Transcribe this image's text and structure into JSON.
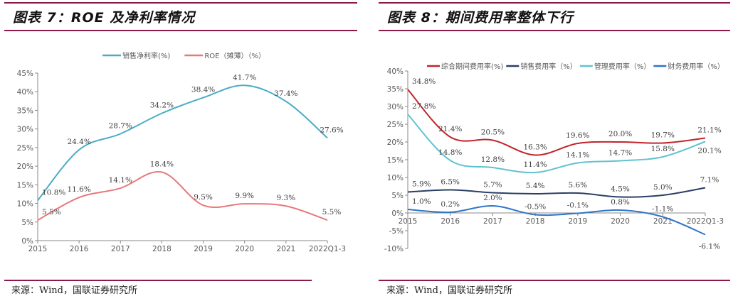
{
  "left": {
    "title": "图表 7：ROE 及净利率情况",
    "source": "来源：Wind，国联证券研究所"
  },
  "right": {
    "title": "图表 8：期间费用率整体下行",
    "source": "来源：Wind，国联证券研究所"
  },
  "chart_data": [
    {
      "type": "line",
      "categories": [
        "2015",
        "2016",
        "2017",
        "2018",
        "2019",
        "2020",
        "2021",
        "2022Q1-3"
      ],
      "ylim": [
        0,
        45
      ],
      "yticks": [
        "0%",
        "5%",
        "10%",
        "15%",
        "20%",
        "25%",
        "30%",
        "35%",
        "40%",
        "45%"
      ],
      "legend": "top",
      "grid": false,
      "series": [
        {
          "name": "销售净利率(%)",
          "color": "#4bacc6",
          "values": [
            10.8,
            24.4,
            28.7,
            34.2,
            38.4,
            41.7,
            37.4,
            27.6
          ]
        },
        {
          "name": "ROE（摊薄）（%）",
          "color": "#e8787a",
          "values": [
            5.5,
            11.6,
            14.1,
            18.4,
            9.5,
            9.9,
            9.3,
            5.5
          ]
        }
      ]
    },
    {
      "type": "line",
      "categories": [
        "2015",
        "2016",
        "2017",
        "2018",
        "2019",
        "2020",
        "2021",
        "2022Q1-3"
      ],
      "ylim": [
        -10,
        40
      ],
      "yticks": [
        "-10%",
        "-5%",
        "0%",
        "5%",
        "10%",
        "15%",
        "20%",
        "25%",
        "30%",
        "35%",
        "40%"
      ],
      "legend": "top",
      "grid": false,
      "series": [
        {
          "name": "综合期间费用率(%)",
          "color": "#c0252b",
          "values": [
            34.8,
            21.4,
            20.5,
            16.3,
            19.6,
            20.0,
            19.7,
            21.1
          ]
        },
        {
          "name": "销售费用率（%）",
          "color": "#2b3f66",
          "values": [
            5.9,
            6.5,
            5.7,
            5.4,
            5.6,
            4.5,
            5.0,
            7.1
          ]
        },
        {
          "name": "管理费用率（%）",
          "color": "#5fc3d0",
          "values": [
            27.8,
            14.8,
            12.8,
            11.4,
            14.1,
            14.7,
            15.8,
            20.1
          ]
        },
        {
          "name": "财务费用率（%）",
          "color": "#2e75c9",
          "values": [
            1.0,
            0.2,
            2.0,
            -0.5,
            -0.1,
            0.8,
            -1.1,
            -6.1
          ]
        }
      ]
    }
  ]
}
